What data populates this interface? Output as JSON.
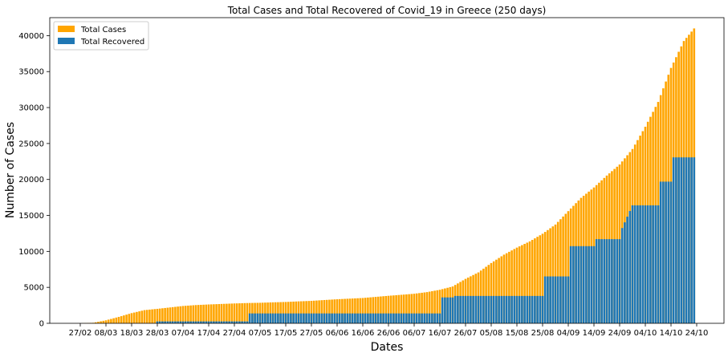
{
  "chart_data": {
    "type": "bar",
    "title": "Total Cases and Total Recovered of Covid_19 in Greece (250 days)",
    "xlabel": "Dates",
    "ylabel": "Number of Cases",
    "ylim": [
      0,
      42500
    ],
    "y_ticks": [
      0,
      5000,
      10000,
      15000,
      20000,
      25000,
      30000,
      35000,
      40000
    ],
    "x_tick_labels": [
      "27/02",
      "08/03",
      "18/03",
      "28/03",
      "07/04",
      "17/04",
      "27/04",
      "07/05",
      "17/05",
      "27/05",
      "06/06",
      "16/06",
      "26/06",
      "06/07",
      "16/07",
      "26/07",
      "05/08",
      "15/08",
      "25/08",
      "04/09",
      "14/09",
      "24/09",
      "04/10",
      "14/10",
      "24/10"
    ],
    "legend": {
      "placement": "top-left",
      "entries": [
        "Total Cases",
        "Total Recovered"
      ]
    },
    "grid": false,
    "series": [
      {
        "name": "Total Cases",
        "color": "#ffa500",
        "x_days": [
          0,
          5,
          10,
          15,
          20,
          25,
          30,
          35,
          40,
          45,
          50,
          55,
          60,
          65,
          70,
          75,
          80,
          85,
          90,
          95,
          100,
          105,
          110,
          115,
          120,
          125,
          130,
          135,
          140,
          145,
          150,
          155,
          160,
          165,
          170,
          175,
          180,
          185,
          190,
          195,
          200,
          205,
          210,
          215,
          220,
          225,
          230,
          235,
          240,
          245,
          249
        ],
        "values": [
          0,
          0,
          7,
          73,
          418,
          892,
          1415,
          1832,
          2011,
          2207,
          2408,
          2534,
          2620,
          2691,
          2760,
          2819,
          2853,
          2915,
          2967,
          3049,
          3121,
          3237,
          3343,
          3432,
          3519,
          3672,
          3826,
          3964,
          4110,
          4337,
          4662,
          5123,
          6177,
          7075,
          8381,
          9549,
          10524,
          11386,
          12452,
          13730,
          15595,
          17444,
          18886,
          20541,
          22078,
          24233,
          27334,
          30782,
          35510,
          39251,
          41000
        ]
      },
      {
        "name": "Total Recovered",
        "color": "#1f77b4",
        "x_days": [
          0,
          39,
          40,
          75,
          76,
          90,
          91,
          115,
          116,
          135,
          136,
          150,
          151,
          155,
          156,
          175,
          176,
          190,
          191,
          200,
          201,
          210,
          211,
          220,
          221,
          225,
          226,
          235,
          236,
          240,
          241,
          249
        ],
        "values": [
          0,
          0,
          269,
          269,
          1374,
          1374,
          1374,
          1374,
          1374,
          1374,
          1374,
          1374,
          3600,
          3600,
          3804,
          3804,
          3804,
          3804,
          6520,
          6520,
          10728,
          10728,
          11700,
          11700,
          13250,
          16400,
          16400,
          16400,
          19700,
          19700,
          23074,
          23074
        ]
      }
    ]
  }
}
